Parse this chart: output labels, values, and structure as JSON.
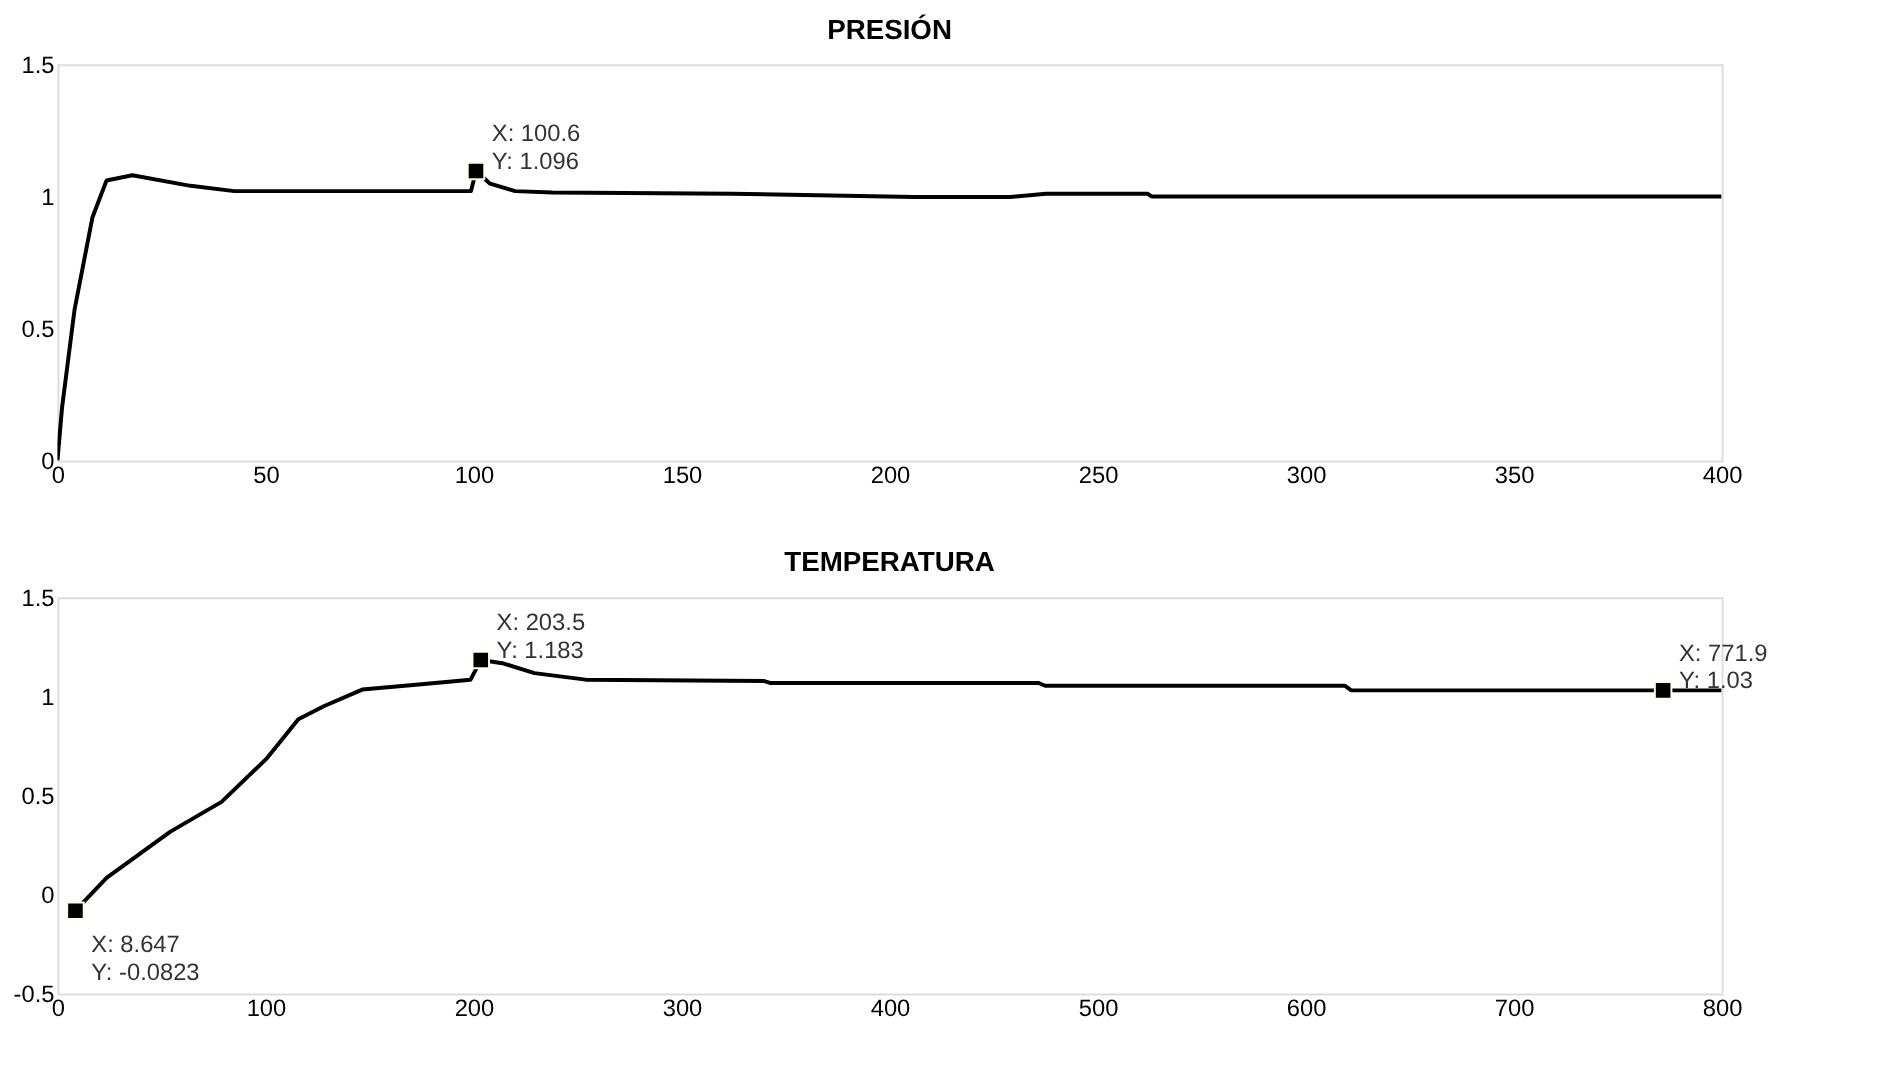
{
  "chart_data": [
    {
      "type": "line",
      "title": "PRESIÓN",
      "xlim": [
        0,
        400
      ],
      "ylim": [
        0,
        1.5
      ],
      "xticks": [
        0,
        50,
        100,
        150,
        200,
        250,
        300,
        350,
        400
      ],
      "yticks": [
        0,
        0.5,
        1,
        1.5
      ],
      "grid": false,
      "series": [
        {
          "color": "#000000",
          "marker": "none",
          "x": [
            0,
            1.1,
            4.1,
            8.4,
            11.8,
            18,
            32,
            42.5,
            99.4,
            100.6,
            104,
            110,
            119,
            162,
            206,
            229,
            237.6,
            262,
            263,
            400
          ],
          "values": [
            0,
            0.2,
            0.57,
            0.92,
            1.06,
            1.08,
            1.04,
            1.02,
            1.02,
            1.096,
            1.048,
            1.02,
            1.015,
            1.01,
            0.998,
            0.998,
            1.01,
            1.01,
            1.0,
            1.0
          ]
        },
        {
          "type": "scatter",
          "color": "#000000",
          "marker": "square",
          "x": [
            100.6
          ],
          "values": [
            1.096
          ]
        }
      ],
      "annotations": [
        {
          "text": "X: 100.6\nY: 1.096",
          "x": 100.6,
          "y": 1.096
        }
      ]
    },
    {
      "type": "line",
      "title": "TEMPERATURA",
      "xlim": [
        0,
        800
      ],
      "ylim": [
        -0.5,
        1.5
      ],
      "xticks": [
        0,
        100,
        200,
        300,
        400,
        500,
        600,
        700,
        800
      ],
      "yticks": [
        -0.5,
        0,
        0.5,
        1,
        1.5
      ],
      "grid": false,
      "series": [
        {
          "color": "#000000",
          "marker": "none",
          "x": [
            8.647,
            23.6,
            54.3,
            78.9,
            100.4,
            115.8,
            128,
            146.5,
            171,
            198.6,
            203.5,
            213.9,
            229.3,
            253.9,
            339.8,
            342.9,
            471.7,
            474.8,
            619,
            622,
            771.9,
            800
          ],
          "values": [
            -0.0823,
            0.084,
            0.317,
            0.467,
            0.684,
            0.884,
            0.95,
            1.034,
            1.057,
            1.084,
            1.183,
            1.167,
            1.117,
            1.084,
            1.077,
            1.067,
            1.067,
            1.053,
            1.053,
            1.03,
            1.03,
            1.03
          ]
        },
        {
          "type": "scatter",
          "color": "#000000",
          "marker": "square",
          "x": [
            8.647,
            203.5,
            771.9
          ],
          "values": [
            -0.0823,
            1.183,
            1.03
          ]
        }
      ],
      "annotations": [
        {
          "text": "X: 8.647\nY: -0.0823",
          "x": 8.647,
          "y": -0.0823
        },
        {
          "text": "X: 203.5\nY: 1.183",
          "x": 203.5,
          "y": 1.183
        },
        {
          "text": "X: 771.9\nY: 1.03",
          "x": 771.9,
          "y": 1.03
        }
      ]
    }
  ]
}
